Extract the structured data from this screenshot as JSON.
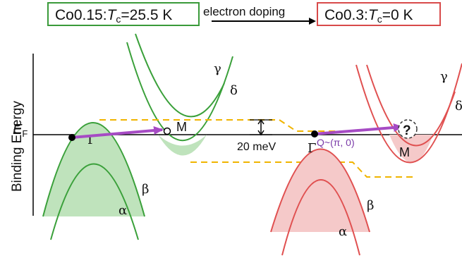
{
  "header": {
    "left_box": {
      "prefix": "Co0.15:",
      "tc_symbol": "T",
      "tc_subscript": "c",
      "value": "=25.5 K",
      "color": "#3a9a3a"
    },
    "arrow_label": "electron doping",
    "right_box": {
      "prefix": "Co0.3:",
      "tc_symbol": "T",
      "tc_subscript": "c",
      "value": "=0 K",
      "color": "#d84a4a"
    }
  },
  "axis": {
    "y_label": "Binding  Energy",
    "fermi_symbol": "E",
    "fermi_subscript": "F"
  },
  "left_panel": {
    "gamma_point": "Γ",
    "m_point": "M",
    "bands": {
      "gamma": "γ",
      "delta": "δ",
      "beta": "β",
      "alpha": "α"
    },
    "band_color": "#3aa03a",
    "fill_color": "#bfe3bc"
  },
  "energy_gap": {
    "label": "20 meV"
  },
  "right_panel": {
    "gamma_point": "Γ",
    "m_point": "M",
    "q_vector": "Q~(π, 0)",
    "question": "?",
    "bands": {
      "gamma": "γ",
      "delta": "δ",
      "beta": "β",
      "alpha": "α"
    },
    "band_color": "#e05050",
    "fill_color": "#f5c9c9"
  },
  "colors": {
    "arrow": "#a64bc4",
    "dashed": "#f0b400"
  }
}
